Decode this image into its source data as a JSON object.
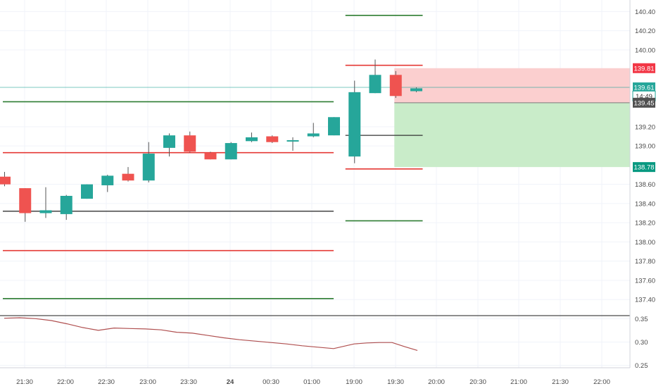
{
  "chart_data": {
    "type": "candlestick",
    "colors": {
      "up": "#26a69a",
      "down": "#ef5350",
      "grid": "#f0f3fa",
      "axis_text": "#4a4a4a",
      "separator": "#4a4a4a",
      "oscillator": "#b05050",
      "level_red": "#e53935",
      "level_green": "#2e7d32",
      "level_black": "#333333",
      "stop_zone": "#fbcfcf",
      "target_zone": "#c9ecc9",
      "label_red": "#f23645",
      "label_green": "#089981",
      "label_dark": "#505050",
      "label_teal": "#26a69a"
    },
    "x_labels": [
      "21:30",
      "22:00",
      "22:30",
      "23:00",
      "23:30",
      "24",
      "00:30",
      "01:00",
      "19:00",
      "19:30",
      "20:00",
      "20:30",
      "21:00",
      "21:30",
      "22:00"
    ],
    "y_axis": {
      "ticks": [
        "140.40",
        "140.20",
        "140.00",
        "139.20",
        "139.00",
        "138.60",
        "138.40",
        "138.20",
        "138.00",
        "137.80",
        "137.60",
        "137.40"
      ],
      "range": [
        137.24,
        140.52
      ]
    },
    "candles": [
      {
        "o": 138.68,
        "h": 138.73,
        "l": 138.58,
        "c": 138.6
      },
      {
        "o": 138.56,
        "h": 138.56,
        "l": 138.21,
        "c": 138.3
      },
      {
        "o": 138.3,
        "h": 138.57,
        "l": 138.25,
        "c": 138.33
      },
      {
        "o": 138.29,
        "h": 138.49,
        "l": 138.23,
        "c": 138.48
      },
      {
        "o": 138.45,
        "h": 138.6,
        "l": 138.45,
        "c": 138.6
      },
      {
        "o": 138.59,
        "h": 138.7,
        "l": 138.52,
        "c": 138.69
      },
      {
        "o": 138.71,
        "h": 138.78,
        "l": 138.63,
        "c": 138.64
      },
      {
        "o": 138.64,
        "h": 139.04,
        "l": 138.62,
        "c": 138.92
      },
      {
        "o": 138.98,
        "h": 139.13,
        "l": 138.89,
        "c": 139.11
      },
      {
        "o": 139.11,
        "h": 139.15,
        "l": 138.93,
        "c": 138.94
      },
      {
        "o": 138.93,
        "h": 138.94,
        "l": 138.86,
        "c": 138.86
      },
      {
        "o": 138.86,
        "h": 139.04,
        "l": 138.86,
        "c": 139.03
      },
      {
        "o": 139.05,
        "h": 139.14,
        "l": 139.04,
        "c": 139.09
      },
      {
        "o": 139.1,
        "h": 139.11,
        "l": 139.03,
        "c": 139.04
      },
      {
        "o": 139.05,
        "h": 139.09,
        "l": 138.95,
        "c": 139.06
      },
      {
        "o": 139.1,
        "h": 139.24,
        "l": 139.09,
        "c": 139.13
      },
      {
        "o": 139.11,
        "h": 139.3,
        "l": 139.11,
        "c": 139.3
      },
      {
        "o": 138.89,
        "h": 139.68,
        "l": 138.82,
        "c": 139.56
      },
      {
        "o": 139.55,
        "h": 139.9,
        "l": 139.55,
        "c": 139.74
      },
      {
        "o": 139.74,
        "h": 139.78,
        "l": 139.5,
        "c": 139.52
      },
      {
        "o": 139.57,
        "h": 139.61,
        "l": 139.56,
        "c": 139.6
      }
    ],
    "levels": [
      {
        "name": "green-upper-left",
        "value": 139.46,
        "from": 0,
        "to": 16,
        "color": "level_green"
      },
      {
        "name": "red-upper-left",
        "value": 138.93,
        "from": 0,
        "to": 16,
        "color": "level_red"
      },
      {
        "name": "black-left",
        "value": 138.32,
        "from": 0,
        "to": 16,
        "color": "level_black"
      },
      {
        "name": "red-lower-left",
        "value": 137.91,
        "from": 0,
        "to": 16,
        "color": "level_red"
      },
      {
        "name": "green-lower-left",
        "value": 137.41,
        "from": 0,
        "to": 16,
        "color": "level_green"
      },
      {
        "name": "green-top-right",
        "value": 140.36,
        "from": 17,
        "to": 20,
        "color": "level_green"
      },
      {
        "name": "red-top-right",
        "value": 139.84,
        "from": 17,
        "to": 20,
        "color": "level_red"
      },
      {
        "name": "black-right",
        "value": 139.11,
        "from": 17,
        "to": 20,
        "color": "level_black"
      },
      {
        "name": "red-bottom-right",
        "value": 138.76,
        "from": 17,
        "to": 20,
        "color": "level_red"
      },
      {
        "name": "green-bottom-right",
        "value": 138.22,
        "from": 17,
        "to": 20,
        "color": "level_green"
      }
    ],
    "position": {
      "entry": 139.45,
      "stop": 139.81,
      "target": 138.78,
      "current": 139.61
    },
    "price_labels": [
      {
        "text": "139.81",
        "value": 139.81,
        "color": "label_red"
      },
      {
        "text": "139.61",
        "value": 139.61,
        "color": "label_teal"
      },
      {
        "text": "14:49",
        "value": 139.52,
        "color": "label_teal"
      },
      {
        "text": "139.45",
        "value": 139.45,
        "color": "label_dark"
      },
      {
        "text": "138.78",
        "value": 138.78,
        "color": "label_green"
      }
    ],
    "oscillator": {
      "y_ticks": [
        "0.35",
        "0.30",
        "0.25"
      ],
      "range": [
        0.245,
        0.355
      ],
      "values": [
        0.351,
        0.352,
        0.35,
        0.346,
        0.339,
        0.331,
        0.325,
        0.33,
        0.329,
        0.328,
        0.326,
        0.321,
        0.319,
        0.314,
        0.309,
        0.305,
        0.302,
        0.299,
        0.296,
        0.292,
        0.289,
        0.286,
        0.296,
        0.298,
        0.299,
        0.299,
        0.29,
        0.282
      ]
    }
  }
}
